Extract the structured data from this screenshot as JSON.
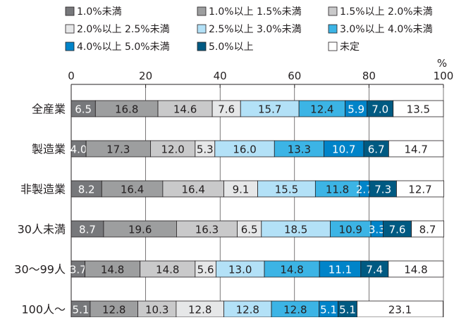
{
  "chart_data": {
    "type": "bar",
    "orientation": "horizontal",
    "stacked": true,
    "xlim": [
      0,
      100
    ],
    "x_ticks": [
      "0",
      "20",
      "40",
      "60",
      "80",
      "100"
    ],
    "x_unit_label": "%",
    "grid": true,
    "legend_position": "top",
    "categories": [
      "全産業",
      "製造業",
      "非製造業",
      "30人未満",
      "30〜99人",
      "100人〜"
    ],
    "series": [
      {
        "name": "1.0%未満",
        "color": "#77787b",
        "label_color": "#ffffff",
        "values": [
          6.5,
          4.0,
          8.2,
          8.7,
          3.7,
          5.1
        ]
      },
      {
        "name": "1.0%以上 1.5%未満",
        "color": "#9d9e9f",
        "label_color": "#231f20",
        "values": [
          16.8,
          17.3,
          16.4,
          19.6,
          14.8,
          12.8
        ]
      },
      {
        "name": "1.5%以上 2.0%未満",
        "color": "#c9c9ca",
        "label_color": "#231f20",
        "values": [
          14.6,
          12.0,
          16.4,
          16.3,
          14.8,
          10.3
        ]
      },
      {
        "name": "2.0%以上 2.5%未満",
        "color": "#e6e7e8",
        "label_color": "#231f20",
        "values": [
          7.6,
          5.3,
          9.1,
          6.5,
          5.6,
          12.8
        ]
      },
      {
        "name": "2.5%以上 3.0%未満",
        "color": "#b3e1f7",
        "label_color": "#231f20",
        "values": [
          15.7,
          16.0,
          15.5,
          18.5,
          13.0,
          12.8
        ]
      },
      {
        "name": "3.0%以上 4.0%未満",
        "color": "#3cb4e5",
        "label_color": "#231f20",
        "values": [
          12.4,
          13.3,
          11.8,
          10.9,
          14.8,
          12.8
        ]
      },
      {
        "name": "4.0%以上 5.0%未満",
        "color": "#0084c9",
        "label_color": "#ffffff",
        "values": [
          5.9,
          10.7,
          2.7,
          3.3,
          11.1,
          5.1
        ]
      },
      {
        "name": "5.0%以上",
        "color": "#005a82",
        "label_color": "#ffffff",
        "values": [
          7.0,
          6.7,
          7.3,
          7.6,
          7.4,
          5.1
        ]
      },
      {
        "name": "未定",
        "color": "#ffffff",
        "label_color": "#231f20",
        "values": [
          13.5,
          14.7,
          12.7,
          8.7,
          14.8,
          23.1
        ]
      }
    ]
  }
}
